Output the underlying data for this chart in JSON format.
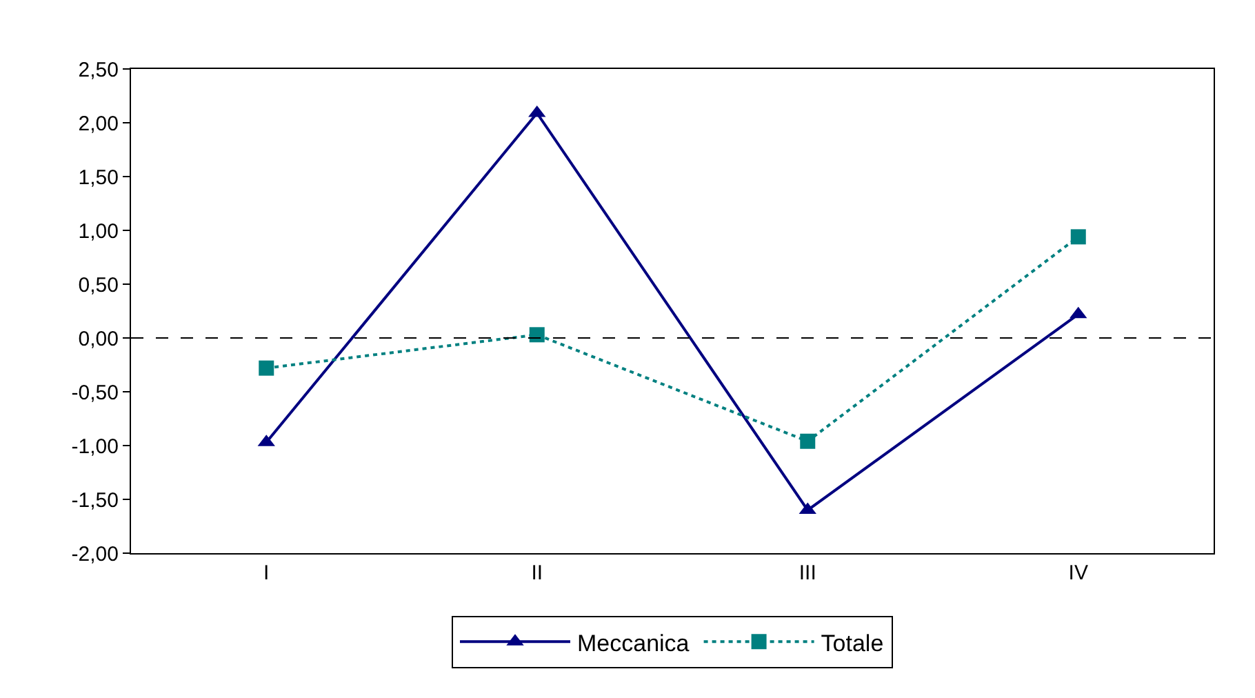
{
  "chart_data": {
    "type": "line",
    "categories": [
      "I",
      "II",
      "III",
      "IV"
    ],
    "series": [
      {
        "name": "Meccanica",
        "color": "#000080",
        "values": [
          -0.97,
          2.09,
          -1.6,
          0.22
        ],
        "marker": "triangle",
        "line_style": "solid"
      },
      {
        "name": "Totale",
        "color": "#008080",
        "values": [
          -0.28,
          0.03,
          -0.96,
          0.94
        ],
        "marker": "square",
        "line_style": "dotted"
      }
    ],
    "ylim": [
      -2,
      2.5
    ],
    "yticks": [
      {
        "value": -2,
        "label": "-2,00"
      },
      {
        "value": -1.5,
        "label": "-1,50"
      },
      {
        "value": -1,
        "label": "-1,00"
      },
      {
        "value": -0.5,
        "label": "-0,50"
      },
      {
        "value": 0,
        "label": "0,00"
      },
      {
        "value": 0.5,
        "label": "0,50"
      },
      {
        "value": 1,
        "label": "1,00"
      },
      {
        "value": 1.5,
        "label": "1,50"
      },
      {
        "value": 2,
        "label": "2,00"
      },
      {
        "value": 2.5,
        "label": "2,50"
      }
    ],
    "ref_lines": [
      {
        "axis": "y",
        "value": 0,
        "label": null,
        "color": "#000000",
        "line_style": "dashed"
      }
    ],
    "grid": false,
    "legend": "bottom"
  }
}
